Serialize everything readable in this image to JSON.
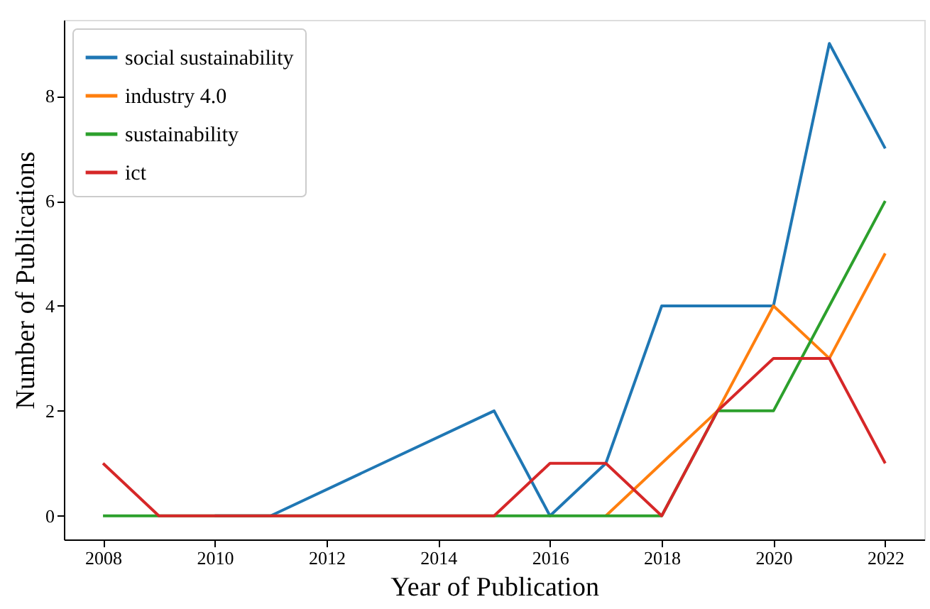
{
  "chart_data": {
    "type": "line",
    "xlabel": "Year of Publication",
    "ylabel": "Number of Publications",
    "x": [
      2008,
      2009,
      2010,
      2011,
      2012,
      2013,
      2014,
      2015,
      2016,
      2017,
      2018,
      2019,
      2020,
      2021,
      2022
    ],
    "series": [
      {
        "name": "social sustainability",
        "color": "#1f77b4",
        "x": [
          2010,
          2011,
          2015,
          2016,
          2017,
          2018,
          2019,
          2020,
          2021,
          2022
        ],
        "values": [
          0,
          0,
          2,
          0,
          1,
          4,
          4,
          4,
          9,
          7
        ]
      },
      {
        "name": "industry 4.0",
        "color": "#ff7f0e",
        "values": [
          null,
          null,
          null,
          null,
          null,
          null,
          null,
          null,
          null,
          0,
          1,
          2,
          4,
          3,
          5
        ]
      },
      {
        "name": "sustainability",
        "color": "#2ca02c",
        "values": [
          0,
          0,
          0,
          0,
          0,
          0,
          0,
          0,
          0,
          0,
          0,
          2,
          2,
          4,
          6
        ]
      },
      {
        "name": "ict",
        "color": "#d62728",
        "values": [
          1,
          0,
          0,
          0,
          0,
          0,
          0,
          0,
          1,
          1,
          0,
          2,
          3,
          3,
          1
        ]
      }
    ],
    "xlim": [
      2007.3,
      2022.7
    ],
    "ylim": [
      -0.45,
      9.45
    ],
    "xticks": [
      2008,
      2010,
      2012,
      2014,
      2016,
      2018,
      2020,
      2022
    ],
    "yticks": [
      0,
      2,
      4,
      6,
      8
    ],
    "legend": "top left",
    "grid": false,
    "marker": "none",
    "line_style": "solid"
  }
}
